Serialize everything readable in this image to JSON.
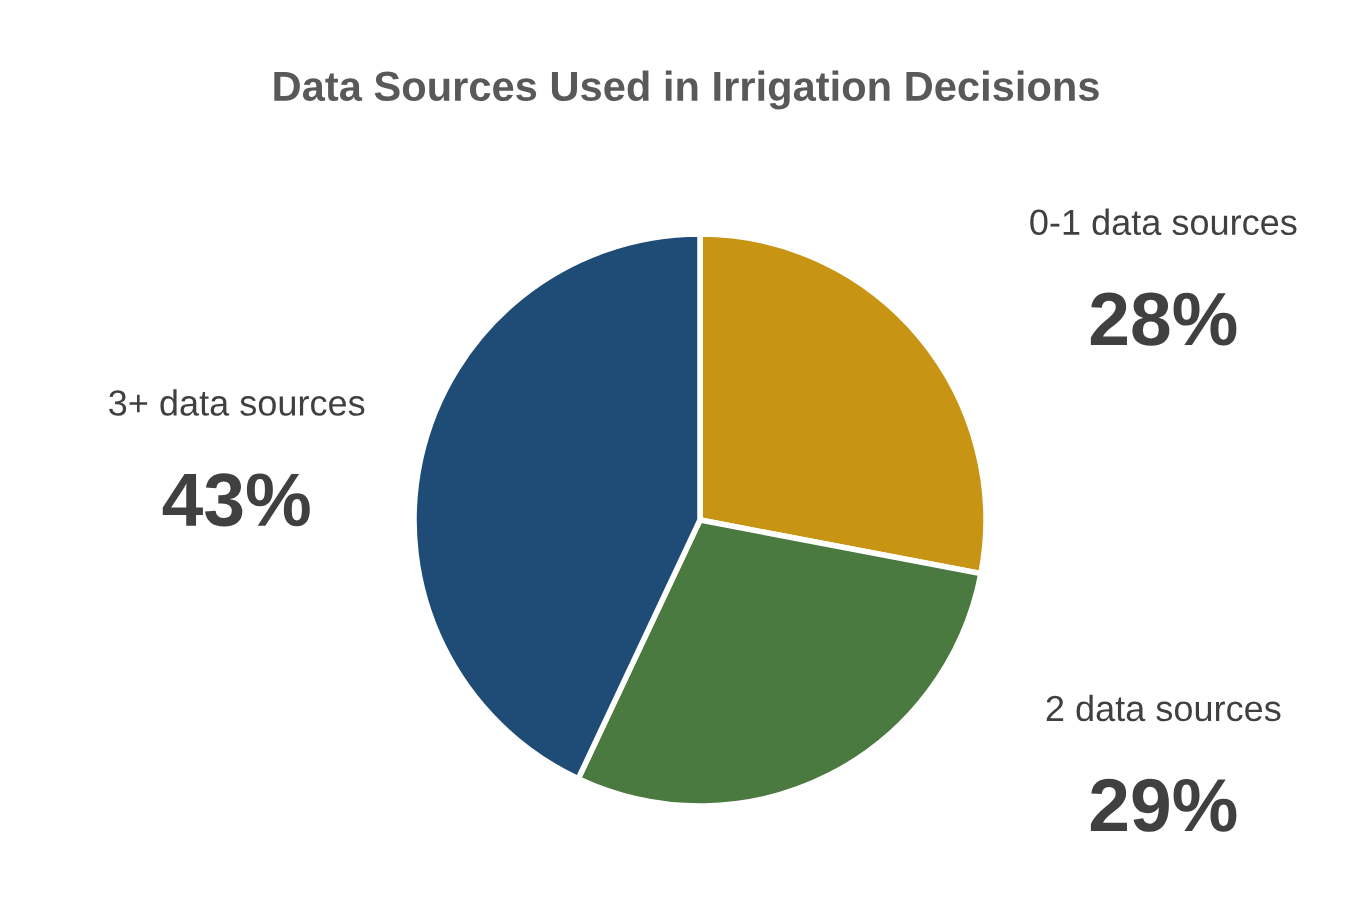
{
  "chart_data": {
    "type": "pie",
    "title": "Data Sources Used in Irrigation Decisions",
    "categories": [
      "0-1 data sources",
      "2 data sources",
      "3+ data sources"
    ],
    "values": [
      28,
      29,
      43
    ],
    "value_labels": [
      "28%",
      "29%",
      "43%"
    ],
    "colors": [
      "#c89414",
      "#4a7a40",
      "#1f4c76"
    ],
    "legend": false
  }
}
